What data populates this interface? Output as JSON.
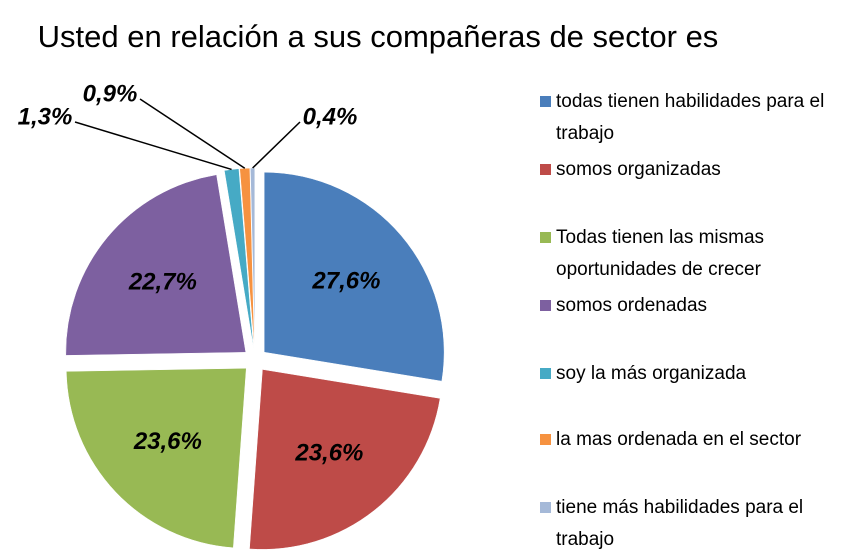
{
  "chart_data": {
    "type": "pie",
    "title": "Usted en relación a sus compañeras de sector es",
    "categories": [
      "todas tienen habilidades para el trabajo",
      "somos organizadas",
      "Todas tienen las mismas oportunidades de crecer",
      "somos ordenadas",
      "soy la más organizada",
      "la mas ordenada  en el sector",
      "tiene más habilidades para el trabajo"
    ],
    "values": [
      27.6,
      23.6,
      23.6,
      22.7,
      1.3,
      0.9,
      0.4
    ],
    "value_labels": [
      "27,6%",
      "23,6%",
      "23,6%",
      "22,7%",
      "1,3%",
      "0,9%",
      "0,4%"
    ],
    "colors": [
      "#4a7ebb",
      "#be4b48",
      "#98b954",
      "#7d60a0",
      "#46aac5",
      "#f69240",
      "#a5b9d8"
    ],
    "legend": "right"
  }
}
